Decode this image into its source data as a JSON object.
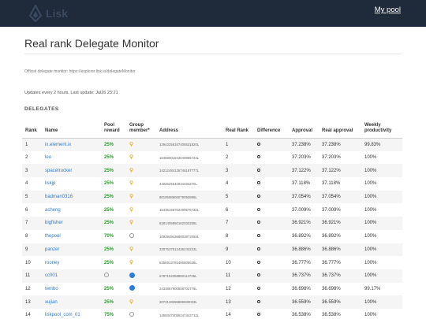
{
  "header": {
    "logo_text": "Lisk",
    "my_pool_label": "My pool"
  },
  "page": {
    "title": "Real rank Delegate Monitor",
    "official_text": "Official delegate monitor: https://explorer.lisk.io/delegateMonitor",
    "updates_text": "Updates every 2 hours. Last update: Jul26 23:21",
    "section_label": "DELEGATES"
  },
  "table": {
    "columns": {
      "rank": "Rank",
      "name": "Name",
      "pool_reward": "Pool reward",
      "group_member": "Group member*",
      "address": "Address",
      "real_rank": "Real Rank",
      "difference": "Difference",
      "approval": "Approval",
      "real_approval": "Real approval",
      "weekly_productivity": "Weekly productivity"
    },
    "rows": [
      {
        "rank": "1",
        "name": "ix.element.ix",
        "pool_reward": "25%",
        "group": "bulb",
        "address": "13943256167405531820L",
        "real_rank": "1",
        "approval": "37.238%",
        "real_approval": "37.238%",
        "productivity": "99.83%"
      },
      {
        "rank": "2",
        "name": "leo",
        "pool_reward": "25%",
        "group": "bulb",
        "address": "15458001843048965724L",
        "real_rank": "2",
        "approval": "37.203%",
        "real_approval": "37.203%",
        "productivity": "100%"
      },
      {
        "rank": "3",
        "name": "spacetrucker",
        "pool_reward": "25%",
        "group": "bulb",
        "address": "14212484126746187777L",
        "real_rank": "3",
        "approval": "37.122%",
        "real_approval": "37.122%",
        "productivity": "100%"
      },
      {
        "rank": "4",
        "name": "liskjp",
        "pool_reward": "25%",
        "group": "bulb",
        "address": "4402625640034434270L",
        "real_rank": "4",
        "approval": "37.118%",
        "real_approval": "37.118%",
        "productivity": "100%"
      },
      {
        "rank": "5",
        "name": "badman0316",
        "pool_reward": "25%",
        "group": "bulb",
        "address": "8019598606079093886L",
        "real_rank": "5",
        "approval": "37.054%",
        "real_approval": "37.054%",
        "productivity": "100%"
      },
      {
        "rank": "6",
        "name": "acheng",
        "pool_reward": "25%",
        "group": "bulb",
        "address": "15435156702499576722L",
        "real_rank": "6",
        "approval": "37.009%",
        "real_approval": "37.009%",
        "productivity": "100%"
      },
      {
        "rank": "7",
        "name": "bigfisher",
        "pool_reward": "25%",
        "group": "bulb",
        "address": "6281405850162033335L",
        "real_rank": "7",
        "approval": "36.921%",
        "real_approval": "36.921%",
        "productivity": "100%"
      },
      {
        "rank": "8",
        "name": "thepool",
        "pool_reward": "70%",
        "group": "empty",
        "address": "10839494368003872059L",
        "real_rank": "8",
        "approval": "36.892%",
        "real_approval": "36.892%",
        "productivity": "100%"
      },
      {
        "rank": "9",
        "name": "panzer",
        "pool_reward": "25%",
        "group": "bulb",
        "address": "3207637512436243223L",
        "real_rank": "9",
        "approval": "36.886%",
        "real_approval": "36.886%",
        "productivity": "100%"
      },
      {
        "rank": "10",
        "name": "rooney",
        "pool_reward": "25%",
        "group": "bulb",
        "address": "6356913781456505636L",
        "real_rank": "10",
        "approval": "36.777%",
        "real_approval": "36.777%",
        "productivity": "100%"
      },
      {
        "rank": "11",
        "name": "cc001",
        "pool_reward": "",
        "group": "blue",
        "address": "6787154358850114736L",
        "real_rank": "11",
        "approval": "36.737%",
        "real_approval": "36.737%",
        "productivity": "100%"
      },
      {
        "rank": "12",
        "name": "tembo",
        "pool_reward": "25%",
        "group": "blue",
        "address": "2433857900558702776L",
        "real_rank": "12",
        "approval": "36.698%",
        "real_approval": "36.698%",
        "productivity": "99.17%"
      },
      {
        "rank": "13",
        "name": "xujian",
        "pool_reward": "25%",
        "group": "bulb",
        "address": "2074128296889930023L",
        "real_rank": "13",
        "approval": "36.559%",
        "real_approval": "36.559%",
        "productivity": "100%"
      },
      {
        "rank": "14",
        "name": "liskpool_com_01",
        "pool_reward": "75%",
        "group": "empty",
        "address": "14593474056247442712L",
        "real_rank": "14",
        "approval": "36.538%",
        "real_approval": "36.538%",
        "productivity": "100%"
      }
    ]
  },
  "colors": {
    "topbar": "#1f2a3a",
    "link": "#2e7bcf",
    "reward": "#2e9a2e",
    "bulb": "#e8b020",
    "group_blue": "#2e7bdb"
  }
}
